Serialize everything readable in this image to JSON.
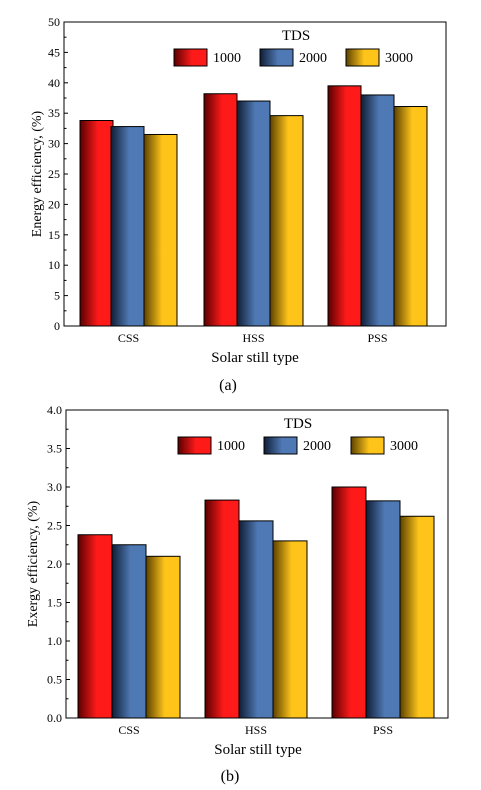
{
  "chart_data": [
    {
      "type": "bar",
      "panel_label": "(a)",
      "xlabel": "Solar still type",
      "ylabel": "Energy efficiency, (%)",
      "ylim": [
        0,
        50
      ],
      "yticks": [
        0,
        5,
        10,
        15,
        20,
        25,
        30,
        35,
        40,
        45,
        50
      ],
      "categories": [
        "CSS",
        "HSS",
        "PSS"
      ],
      "legend_title": "TDS",
      "legend_position": "top-right",
      "series": [
        {
          "name": "1000",
          "values": [
            33.8,
            38.2,
            39.5
          ],
          "color_dark": "#5a0000",
          "color_light": "#ff1a1a"
        },
        {
          "name": "2000",
          "values": [
            32.8,
            37.0,
            38.0
          ],
          "color_dark": "#0f1e36",
          "color_light": "#4f79b4"
        },
        {
          "name": "3000",
          "values": [
            31.5,
            34.6,
            36.1
          ],
          "color_dark": "#5c4200",
          "color_light": "#ffc41a"
        }
      ]
    },
    {
      "type": "bar",
      "panel_label": "(b)",
      "xlabel": "Solar still type",
      "ylabel": "Exergy efficiency, (%)",
      "ylim": [
        0,
        4
      ],
      "yticks": [
        "0.0",
        "0.5",
        "1.0",
        "1.5",
        "2.0",
        "2.5",
        "3.0",
        "3.5",
        "4.0"
      ],
      "categories": [
        "CSS",
        "HSS",
        "PSS"
      ],
      "legend_title": "TDS",
      "legend_position": "top-right",
      "series": [
        {
          "name": "1000",
          "values": [
            2.38,
            2.83,
            3.0
          ],
          "color_dark": "#5a0000",
          "color_light": "#ff1a1a"
        },
        {
          "name": "2000",
          "values": [
            2.25,
            2.56,
            2.82
          ],
          "color_dark": "#0f1e36",
          "color_light": "#4f79b4"
        },
        {
          "name": "3000",
          "values": [
            2.1,
            2.3,
            2.62
          ],
          "color_dark": "#5c4200",
          "color_light": "#ffc41a"
        }
      ]
    }
  ]
}
